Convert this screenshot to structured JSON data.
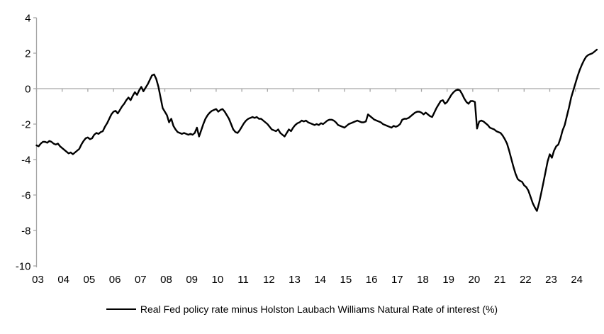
{
  "chart_data": {
    "type": "line",
    "title": "",
    "legend": "Real Fed policy rate minus Holston Laubach Williams Natural Rate of interest (%)",
    "x_tick_labels": [
      "03",
      "04",
      "05",
      "06",
      "07",
      "08",
      "09",
      "10",
      "11",
      "12",
      "13",
      "14",
      "15",
      "16",
      "17",
      "18",
      "19",
      "20",
      "21",
      "22",
      "23",
      "24"
    ],
    "y_ticks": [
      4,
      2,
      0,
      -2,
      -4,
      -6,
      -8,
      -10
    ],
    "ylim": [
      -10,
      4
    ],
    "x_start_year": 2003,
    "frequency": "monthly",
    "grid": "zero-line-only",
    "legend_position": "bottom-center",
    "line_color": "#000000",
    "axis_color": "#a6a6a6",
    "series": [
      {
        "name": "Real Fed policy rate minus Holston Laubach Williams Natural Rate of interest (%)",
        "values": [
          -3.2,
          -3.25,
          -3.1,
          -3.0,
          -3.0,
          -3.05,
          -2.95,
          -3.0,
          -3.1,
          -3.15,
          -3.1,
          -3.25,
          -3.35,
          -3.45,
          -3.55,
          -3.65,
          -3.6,
          -3.7,
          -3.6,
          -3.5,
          -3.4,
          -3.15,
          -2.95,
          -2.8,
          -2.75,
          -2.85,
          -2.8,
          -2.6,
          -2.5,
          -2.55,
          -2.45,
          -2.4,
          -2.15,
          -1.95,
          -1.7,
          -1.45,
          -1.3,
          -1.25,
          -1.4,
          -1.2,
          -1.0,
          -0.85,
          -0.65,
          -0.5,
          -0.65,
          -0.4,
          -0.2,
          -0.35,
          -0.1,
          0.1,
          -0.15,
          0.05,
          0.25,
          0.5,
          0.75,
          0.8,
          0.55,
          0.1,
          -0.5,
          -1.1,
          -1.3,
          -1.5,
          -1.9,
          -1.7,
          -2.1,
          -2.3,
          -2.45,
          -2.5,
          -2.55,
          -2.5,
          -2.55,
          -2.6,
          -2.55,
          -2.6,
          -2.5,
          -2.2,
          -2.7,
          -2.35,
          -2.0,
          -1.7,
          -1.5,
          -1.35,
          -1.25,
          -1.2,
          -1.15,
          -1.3,
          -1.2,
          -1.15,
          -1.3,
          -1.5,
          -1.7,
          -2.0,
          -2.3,
          -2.45,
          -2.5,
          -2.35,
          -2.15,
          -1.95,
          -1.8,
          -1.7,
          -1.65,
          -1.6,
          -1.65,
          -1.6,
          -1.7,
          -1.7,
          -1.8,
          -1.9,
          -2.0,
          -2.15,
          -2.3,
          -2.35,
          -2.4,
          -2.3,
          -2.5,
          -2.6,
          -2.7,
          -2.5,
          -2.3,
          -2.4,
          -2.2,
          -2.05,
          -1.95,
          -1.9,
          -1.8,
          -1.85,
          -1.8,
          -1.9,
          -1.95,
          -2.0,
          -2.05,
          -2.0,
          -2.05,
          -1.95,
          -2.0,
          -1.9,
          -1.8,
          -1.75,
          -1.75,
          -1.8,
          -1.9,
          -2.05,
          -2.1,
          -2.15,
          -2.2,
          -2.1,
          -2.0,
          -1.95,
          -1.9,
          -1.85,
          -1.8,
          -1.85,
          -1.9,
          -1.9,
          -1.85,
          -1.45,
          -1.55,
          -1.65,
          -1.75,
          -1.8,
          -1.85,
          -1.9,
          -2.0,
          -2.05,
          -2.1,
          -2.15,
          -2.2,
          -2.1,
          -2.15,
          -2.1,
          -2.0,
          -1.75,
          -1.7,
          -1.7,
          -1.65,
          -1.55,
          -1.45,
          -1.35,
          -1.3,
          -1.3,
          -1.35,
          -1.45,
          -1.35,
          -1.45,
          -1.55,
          -1.6,
          -1.35,
          -1.1,
          -0.9,
          -0.7,
          -0.65,
          -0.85,
          -0.75,
          -0.55,
          -0.35,
          -0.2,
          -0.1,
          -0.05,
          -0.1,
          -0.3,
          -0.55,
          -0.75,
          -0.85,
          -0.7,
          -0.7,
          -0.75,
          -2.25,
          -1.85,
          -1.8,
          -1.85,
          -1.95,
          -2.05,
          -2.2,
          -2.25,
          -2.3,
          -2.4,
          -2.45,
          -2.5,
          -2.65,
          -2.85,
          -3.1,
          -3.5,
          -3.95,
          -4.4,
          -4.8,
          -5.1,
          -5.2,
          -5.25,
          -5.45,
          -5.55,
          -5.75,
          -6.1,
          -6.45,
          -6.7,
          -6.9,
          -6.45,
          -5.9,
          -5.3,
          -4.7,
          -4.1,
          -3.7,
          -3.9,
          -3.5,
          -3.25,
          -3.15,
          -2.8,
          -2.35,
          -2.05,
          -1.55,
          -1.05,
          -0.5,
          -0.1,
          0.3,
          0.7,
          1.05,
          1.35,
          1.6,
          1.8,
          1.9,
          1.95,
          2.0,
          2.1,
          2.2
        ]
      }
    ]
  }
}
